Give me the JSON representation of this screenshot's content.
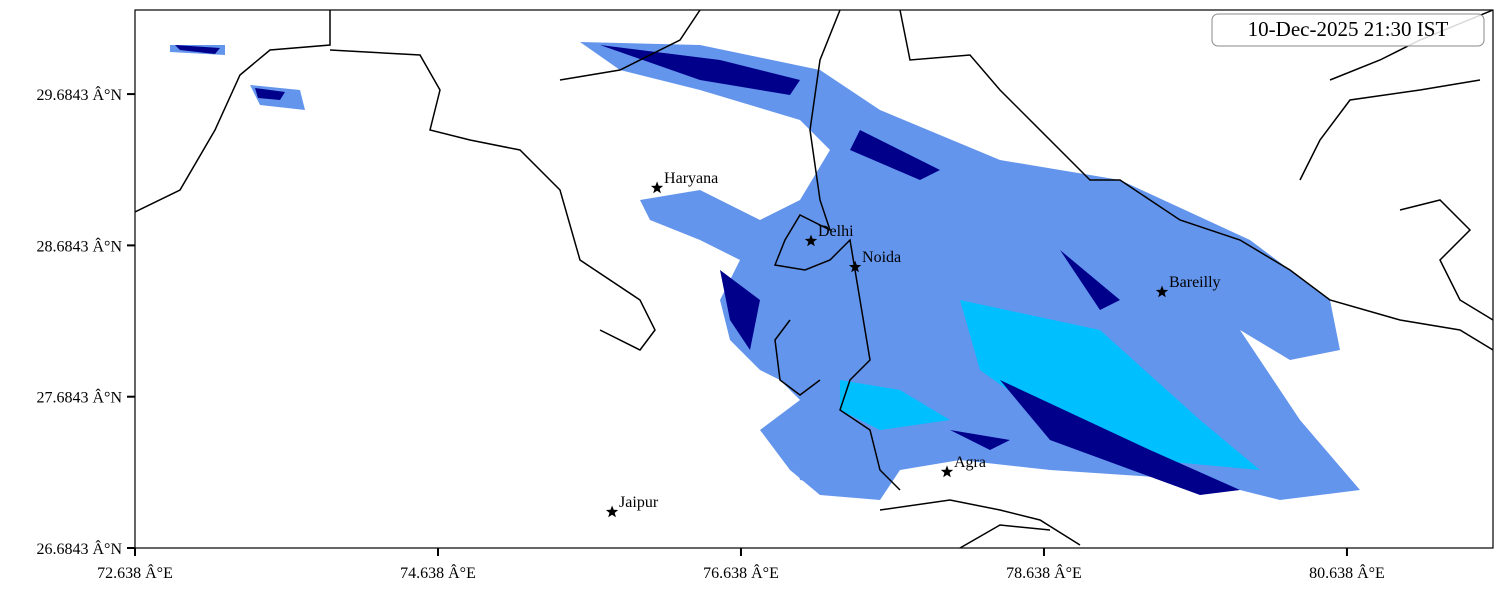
{
  "chart_data": {
    "type": "map",
    "annotation": "10-Dec-2025 21:30 IST",
    "xlim": [
      72.638,
      81.602
    ],
    "ylim": [
      26.6843,
      30.24
    ],
    "xticks": [
      {
        "value": 72.638,
        "label": "72.638 Â°E"
      },
      {
        "value": 74.638,
        "label": "74.638 Â°E"
      },
      {
        "value": 76.638,
        "label": "76.638 Â°E"
      },
      {
        "value": 78.638,
        "label": "78.638 Â°E"
      },
      {
        "value": 80.638,
        "label": "80.638 Â°E"
      }
    ],
    "yticks": [
      {
        "value": 26.6843,
        "label": "26.6843 Â°N"
      },
      {
        "value": 27.6843,
        "label": "27.6843 Â°N"
      },
      {
        "value": 28.6843,
        "label": "28.6843 Â°N"
      },
      {
        "value": 29.6843,
        "label": "29.6843 Â°N"
      }
    ],
    "points": {
      "names": [
        "Haryana",
        "Delhi",
        "Noida",
        "Bareilly",
        "Agra",
        "Jaipur"
      ],
      "lon": [
        76.084,
        77.1,
        77.391,
        79.417,
        77.998,
        75.787
      ],
      "lat": [
        29.064,
        28.713,
        28.541,
        28.376,
        27.187,
        26.922
      ]
    },
    "marker_color": "#000000"
  }
}
